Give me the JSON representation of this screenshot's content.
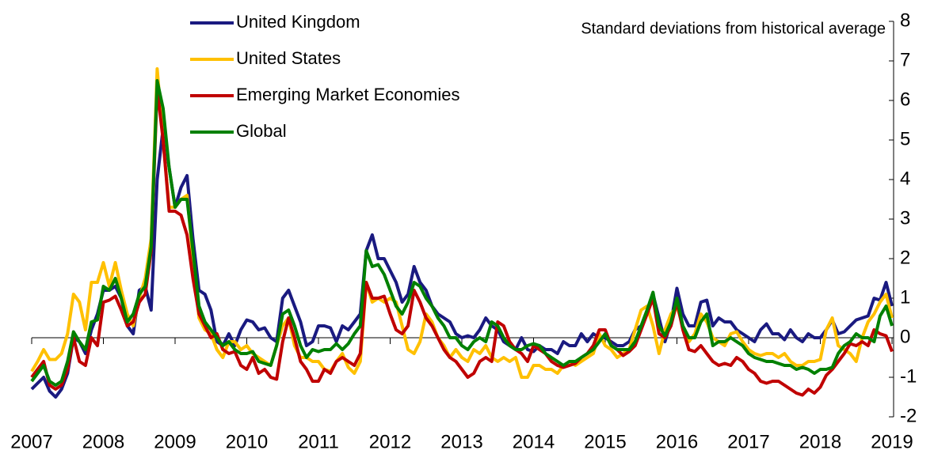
{
  "chart_data": {
    "type": "line",
    "annotation": "Standard deviations from historical average",
    "categories": [
      "2007",
      null,
      null,
      null,
      null,
      null,
      null,
      null,
      null,
      null,
      null,
      null,
      "2008",
      null,
      null,
      null,
      null,
      null,
      null,
      null,
      null,
      null,
      null,
      null,
      "2009",
      null,
      null,
      null,
      null,
      null,
      null,
      null,
      null,
      null,
      null,
      null,
      "2010",
      null,
      null,
      null,
      null,
      null,
      null,
      null,
      null,
      null,
      null,
      null,
      "2011",
      null,
      null,
      null,
      null,
      null,
      null,
      null,
      null,
      null,
      null,
      null,
      "2012",
      null,
      null,
      null,
      null,
      null,
      null,
      null,
      null,
      null,
      null,
      null,
      "2013",
      null,
      null,
      null,
      null,
      null,
      null,
      null,
      null,
      null,
      null,
      null,
      "2014",
      null,
      null,
      null,
      null,
      null,
      null,
      null,
      null,
      null,
      null,
      null,
      "2015",
      null,
      null,
      null,
      null,
      null,
      null,
      null,
      null,
      null,
      null,
      null,
      "2016",
      null,
      null,
      null,
      null,
      null,
      null,
      null,
      null,
      null,
      null,
      null,
      "2017",
      null,
      null,
      null,
      null,
      null,
      null,
      null,
      null,
      null,
      null,
      null,
      "2018",
      null,
      null,
      null,
      null,
      null,
      null,
      null,
      null,
      null,
      null,
      null,
      "2019"
    ],
    "series": [
      {
        "name": "United Kingdom",
        "color": "#1a1a80",
        "values": [
          -1.3,
          -1.15,
          -1.0,
          -1.35,
          -1.5,
          -1.3,
          -0.9,
          0.0,
          -0.1,
          -0.4,
          0.2,
          0.6,
          1.2,
          1.2,
          1.3,
          1.0,
          0.3,
          0.1,
          1.2,
          1.3,
          0.7,
          4.0,
          5.3,
          4.3,
          3.3,
          3.8,
          4.1,
          2.5,
          1.2,
          1.1,
          0.7,
          -0.1,
          -0.2,
          0.1,
          -0.2,
          0.2,
          0.45,
          0.4,
          0.2,
          0.25,
          0.0,
          -0.1,
          1.0,
          1.2,
          0.8,
          0.4,
          -0.2,
          -0.1,
          0.3,
          0.3,
          0.25,
          -0.1,
          0.3,
          0.2,
          0.4,
          0.6,
          2.2,
          2.6,
          2.0,
          2.0,
          1.7,
          1.4,
          0.9,
          1.1,
          1.8,
          1.4,
          1.2,
          0.8,
          0.6,
          0.5,
          0.4,
          0.1,
          0.0,
          0.05,
          0.0,
          0.2,
          0.5,
          0.3,
          0.2,
          -0.1,
          -0.2,
          -0.3,
          0.0,
          -0.3,
          -0.35,
          -0.2,
          -0.3,
          -0.3,
          -0.4,
          -0.1,
          -0.2,
          -0.2,
          0.1,
          -0.1,
          0.1,
          0.0,
          0.0,
          -0.1,
          -0.2,
          -0.2,
          -0.1,
          0.2,
          0.3,
          0.6,
          1.1,
          0.5,
          -0.1,
          0.4,
          1.25,
          0.6,
          0.3,
          0.3,
          0.9,
          0.95,
          0.3,
          0.5,
          0.4,
          0.4,
          0.2,
          0.1,
          0.0,
          -0.1,
          0.2,
          0.35,
          0.1,
          0.1,
          -0.05,
          0.2,
          0.0,
          -0.1,
          0.1,
          0.0,
          0.0,
          0.2,
          0.45,
          0.1,
          0.15,
          0.3,
          0.45,
          0.5,
          0.55,
          1.0,
          0.95,
          1.4,
          0.8
        ]
      },
      {
        "name": "United States",
        "color": "#ffc000",
        "values": [
          -0.85,
          -0.6,
          -0.3,
          -0.55,
          -0.55,
          -0.4,
          0.1,
          1.1,
          0.9,
          0.2,
          1.4,
          1.4,
          1.9,
          1.3,
          1.9,
          1.2,
          0.6,
          0.3,
          1.0,
          1.5,
          2.5,
          6.8,
          5.0,
          3.3,
          3.3,
          3.5,
          3.6,
          2.0,
          0.5,
          0.2,
          0.1,
          -0.3,
          -0.5,
          -0.1,
          -0.1,
          -0.3,
          -0.2,
          -0.4,
          -0.5,
          -0.6,
          -0.7,
          -0.2,
          0.3,
          0.5,
          -0.2,
          -0.5,
          -0.5,
          -0.6,
          -0.6,
          -0.8,
          -0.85,
          -0.6,
          -0.4,
          -0.75,
          -0.9,
          -0.6,
          1.4,
          0.9,
          1.0,
          0.9,
          1.0,
          0.9,
          0.3,
          -0.3,
          -0.4,
          -0.1,
          0.6,
          0.4,
          0.0,
          -0.2,
          -0.5,
          -0.3,
          -0.5,
          -0.6,
          -0.3,
          -0.4,
          -0.2,
          -0.5,
          -0.6,
          -0.5,
          -0.6,
          -0.5,
          -1.0,
          -1.0,
          -0.7,
          -0.7,
          -0.8,
          -0.8,
          -0.9,
          -0.7,
          -0.6,
          -0.7,
          -0.6,
          -0.5,
          -0.4,
          0.1,
          -0.2,
          -0.3,
          -0.5,
          -0.4,
          -0.3,
          0.2,
          0.7,
          0.8,
          0.3,
          -0.4,
          0.2,
          0.6,
          0.8,
          0.3,
          -0.1,
          0.1,
          0.6,
          0.4,
          0.0,
          -0.1,
          -0.2,
          0.1,
          0.15,
          -0.1,
          -0.3,
          -0.4,
          -0.45,
          -0.4,
          -0.4,
          -0.5,
          -0.4,
          -0.6,
          -0.7,
          -0.7,
          -0.6,
          -0.6,
          -0.55,
          0.2,
          0.5,
          -0.2,
          -0.3,
          -0.4,
          -0.6,
          0.0,
          0.4,
          0.6,
          0.9,
          1.1,
          0.5
        ]
      },
      {
        "name": "Emerging Market Economies",
        "color": "#c00000",
        "values": [
          -1.0,
          -0.8,
          -0.6,
          -1.2,
          -1.3,
          -1.2,
          -0.8,
          0.0,
          -0.6,
          -0.7,
          0.0,
          -0.2,
          0.9,
          0.95,
          1.05,
          0.7,
          0.3,
          0.4,
          0.9,
          1.1,
          2.2,
          6.3,
          5.0,
          3.2,
          3.2,
          3.1,
          2.6,
          1.5,
          0.6,
          0.3,
          0.0,
          0.1,
          -0.3,
          -0.4,
          -0.35,
          -0.7,
          -0.8,
          -0.5,
          -0.9,
          -0.8,
          -1.0,
          -1.05,
          -0.1,
          0.5,
          0.0,
          -0.6,
          -0.8,
          -1.1,
          -1.1,
          -0.8,
          -0.9,
          -0.6,
          -0.5,
          -0.6,
          -0.7,
          -0.4,
          1.4,
          1.0,
          1.0,
          1.05,
          0.6,
          0.2,
          0.1,
          0.3,
          1.2,
          0.9,
          0.5,
          0.3,
          0.0,
          -0.3,
          -0.5,
          -0.6,
          -0.8,
          -1.0,
          -0.9,
          -0.6,
          -0.5,
          -0.6,
          0.4,
          0.3,
          -0.1,
          -0.3,
          -0.4,
          -0.6,
          -0.2,
          -0.3,
          -0.4,
          -0.6,
          -0.7,
          -0.75,
          -0.7,
          -0.65,
          -0.5,
          -0.4,
          -0.2,
          0.2,
          0.2,
          -0.2,
          -0.3,
          -0.45,
          -0.35,
          -0.2,
          0.2,
          0.6,
          1.0,
          0.1,
          0.0,
          0.3,
          0.9,
          0.2,
          -0.3,
          -0.35,
          -0.2,
          -0.4,
          -0.6,
          -0.7,
          -0.65,
          -0.7,
          -0.5,
          -0.6,
          -0.8,
          -0.9,
          -1.1,
          -1.15,
          -1.1,
          -1.1,
          -1.2,
          -1.3,
          -1.4,
          -1.45,
          -1.3,
          -1.4,
          -1.25,
          -0.95,
          -0.8,
          -0.6,
          -0.4,
          -0.15,
          -0.2,
          -0.1,
          -0.2,
          0.2,
          0.1,
          0.05,
          -0.35
        ]
      },
      {
        "name": "Global",
        "color": "#008000",
        "values": [
          -1.1,
          -0.9,
          -0.7,
          -1.1,
          -1.2,
          -1.1,
          -0.6,
          0.15,
          -0.1,
          -0.3,
          0.4,
          0.45,
          1.3,
          1.2,
          1.5,
          1.0,
          0.4,
          0.6,
          1.1,
          1.3,
          2.3,
          6.5,
          5.8,
          4.3,
          3.3,
          3.5,
          3.5,
          2.2,
          0.8,
          0.4,
          0.2,
          0.0,
          -0.2,
          -0.1,
          -0.3,
          -0.4,
          -0.4,
          -0.35,
          -0.6,
          -0.65,
          -0.7,
          -0.2,
          0.6,
          0.7,
          0.3,
          -0.2,
          -0.5,
          -0.3,
          -0.35,
          -0.3,
          -0.3,
          -0.15,
          -0.3,
          -0.15,
          0.1,
          0.3,
          2.2,
          1.8,
          1.85,
          1.6,
          1.2,
          0.8,
          0.6,
          0.9,
          1.4,
          1.3,
          1.0,
          0.8,
          0.5,
          0.3,
          0.0,
          0.0,
          -0.2,
          -0.3,
          -0.1,
          0.0,
          -0.1,
          0.4,
          0.3,
          0.0,
          -0.2,
          -0.3,
          -0.3,
          -0.2,
          -0.15,
          -0.2,
          -0.4,
          -0.5,
          -0.6,
          -0.7,
          -0.6,
          -0.6,
          -0.5,
          -0.4,
          -0.3,
          -0.1,
          0.1,
          -0.2,
          -0.3,
          -0.3,
          -0.3,
          -0.1,
          0.3,
          0.7,
          1.15,
          0.3,
          0.05,
          0.4,
          1.0,
          0.3,
          0.0,
          0.0,
          0.4,
          0.6,
          -0.2,
          -0.1,
          -0.1,
          0.0,
          -0.1,
          -0.2,
          -0.4,
          -0.5,
          -0.55,
          -0.6,
          -0.6,
          -0.65,
          -0.7,
          -0.7,
          -0.8,
          -0.75,
          -0.8,
          -0.9,
          -0.8,
          -0.8,
          -0.75,
          -0.4,
          -0.2,
          -0.1,
          0.1,
          0.0,
          0.0,
          -0.1,
          0.55,
          0.8,
          0.3
        ]
      }
    ],
    "ylim": [
      -2,
      8
    ],
    "yticks": [
      -2,
      -1,
      0,
      1,
      2,
      3,
      4,
      5,
      6,
      7,
      8
    ],
    "y_axis_side": "right",
    "legend": "upper left",
    "grid": false
  }
}
